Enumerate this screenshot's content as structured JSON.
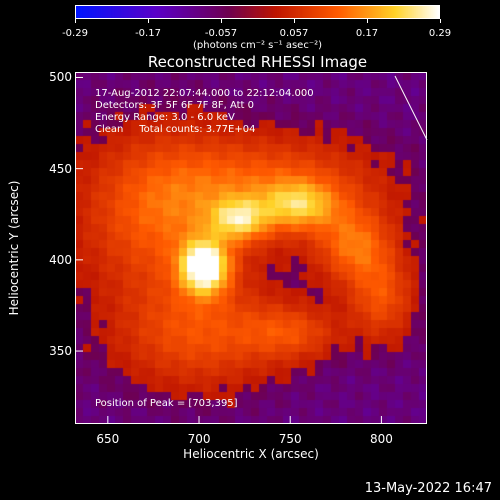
{
  "chart_data": {
    "type": "heatmap",
    "title": "Reconstructed RHESSI Image",
    "xlabel": "Heliocentric X (arcsec)",
    "ylabel": "Heliocentric Y (arcsec)",
    "xlim": [
      632,
      825
    ],
    "ylim": [
      310,
      503
    ],
    "xticks": [
      "650",
      "700",
      "750",
      "800"
    ],
    "yticks": [
      "350",
      "400",
      "450",
      "500"
    ],
    "colorbar": {
      "min": -0.29,
      "max": 0.29,
      "ticks": [
        "-0.29",
        "-0.17",
        "-0.057",
        "0.057",
        "0.17",
        "0.29"
      ],
      "units": "(photons cm⁻² s⁻¹ asec⁻²)",
      "colormap": "blue-purple-red-yellow-white"
    },
    "annotations": {
      "time_range": "17-Aug-2012 22:07:44.000 to 22:12:04.000",
      "detectors": "Detectors: 3F 5F 6F 7F 8F, Att 0",
      "energy_range": "Energy Range: 3.0 - 6.0 keV",
      "algorithm": "Clean     Total counts: 3.77E+04",
      "peak": "Position of Peak = [703,395]"
    },
    "peak": {
      "x": 703,
      "y": 395
    },
    "sources": [
      {
        "x": 703,
        "y": 396,
        "sigma_x": 9,
        "sigma_y": 10,
        "amp": 1.0
      },
      {
        "x": 722,
        "y": 422,
        "sigma_x": 11,
        "sigma_y": 8,
        "amp": 0.55
      },
      {
        "x": 755,
        "y": 430,
        "sigma_x": 14,
        "sigma_y": 9,
        "amp": 0.5
      },
      {
        "x": 785,
        "y": 408,
        "sigma_x": 14,
        "sigma_y": 14,
        "amp": 0.42
      },
      {
        "x": 680,
        "y": 425,
        "sigma_x": 30,
        "sigma_y": 30,
        "amp": 0.38
      },
      {
        "x": 740,
        "y": 440,
        "sigma_x": 40,
        "sigma_y": 18,
        "amp": 0.35
      },
      {
        "x": 800,
        "y": 380,
        "sigma_x": 12,
        "sigma_y": 16,
        "amp": 0.33
      },
      {
        "x": 750,
        "y": 360,
        "sigma_x": 18,
        "sigma_y": 10,
        "amp": 0.28
      },
      {
        "x": 700,
        "y": 360,
        "sigma_x": 30,
        "sigma_y": 20,
        "amp": 0.32
      }
    ],
    "background_level": 0.05,
    "grid": false
  },
  "timestamp": "13-May-2022 16:47"
}
